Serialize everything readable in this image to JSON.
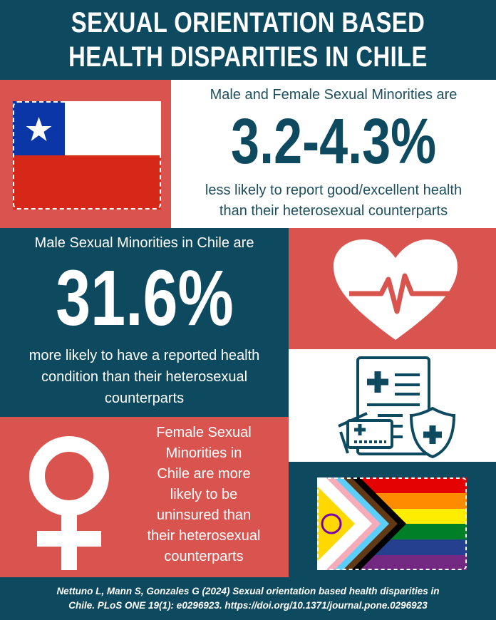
{
  "title": {
    "line1": "SEXUAL ORIENTATION BASED",
    "line2": "HEALTH DISPARITIES IN CHILE"
  },
  "stat1": {
    "intro": "Male and Female Sexual Minorities are",
    "value": "3.2-4.3%",
    "line1": "less likely to report good/excellent health",
    "line2": "than their heterosexual counterparts"
  },
  "stat2": {
    "intro": "Male Sexual Minorities in Chile are",
    "value": "31.6%",
    "line1": "more likely to have a reported health",
    "line2": "condition than their heterosexual",
    "line3": "counterparts"
  },
  "stat3": {
    "lines": [
      "Female Sexual",
      "Minorities in",
      "Chile are more",
      "likely to be",
      "uninsured than",
      "their heterosexual",
      "counterparts"
    ]
  },
  "citation": {
    "line1": "Nettuno L, Mann S, Gonzales G (2024) Sexual orientation based health disparities in",
    "line2": "Chile. PLoS ONE 19(1): e0296923. https://doi.org/10.1371/journal.pone.0296923"
  },
  "colors": {
    "teal": "#0e4a5f",
    "red": "#d9534f",
    "white": "#ffffff"
  },
  "icons": [
    "chile-flag",
    "heart-pulse-icon",
    "medical-insurance-icon",
    "female-symbol-icon",
    "progress-pride-flag"
  ]
}
